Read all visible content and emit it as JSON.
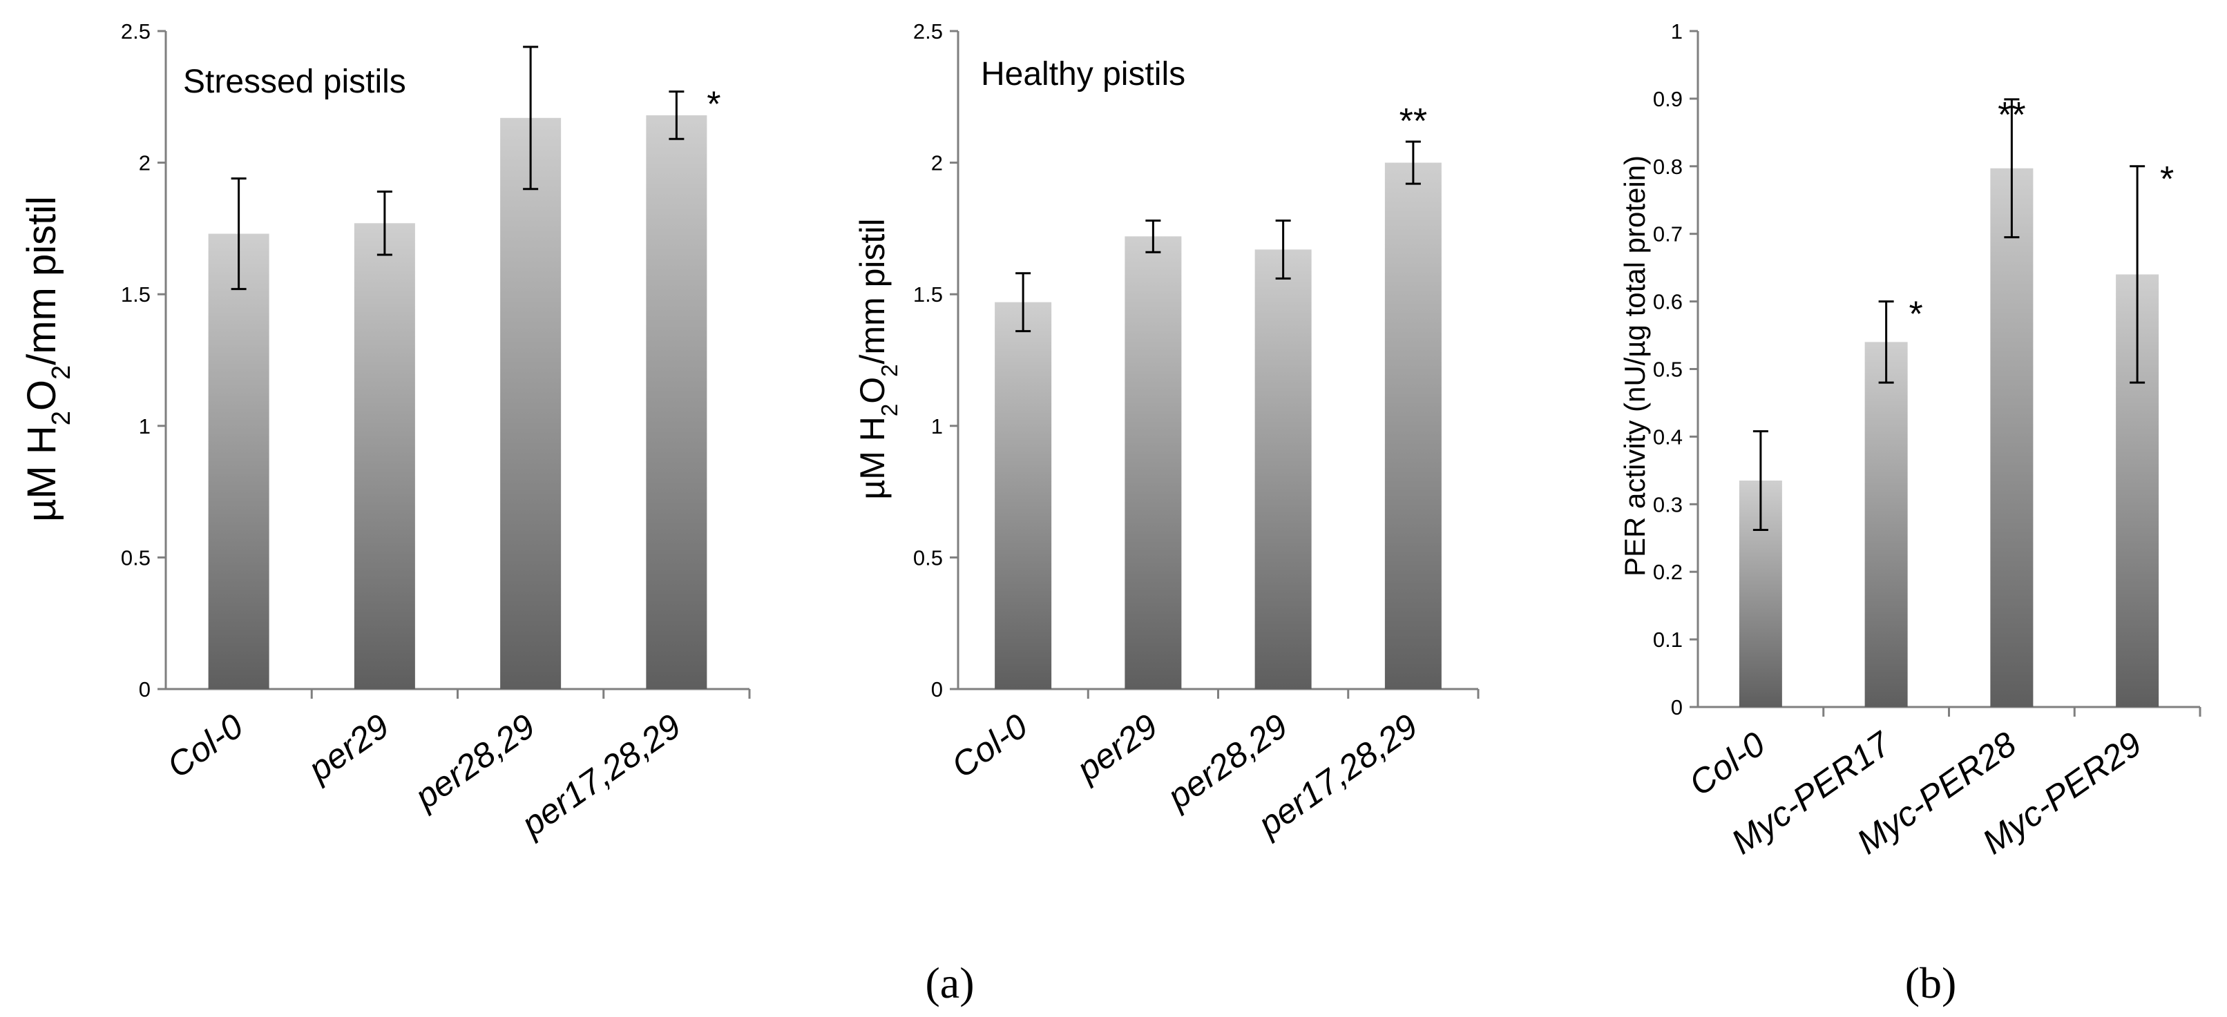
{
  "colors": {
    "bar_top": "#cfcfcf",
    "bar_bottom": "#5e5e5e",
    "axis": "#7f7f7f",
    "text": "#000000"
  },
  "panel_labels": [
    "(a)",
    "(b)"
  ],
  "chart_data": [
    {
      "type": "bar",
      "title": "Stressed pistils",
      "ylabel_parts": {
        "prefix": "µM H",
        "sub1": "2",
        "mid": "O",
        "sub2": "2",
        "suffix": "/mm pistil"
      },
      "categories": [
        "Col-0",
        "per29",
        "per28,29",
        "per17,28,29"
      ],
      "values": [
        1.73,
        1.77,
        2.17,
        2.18
      ],
      "errors": [
        0.21,
        0.12,
        0.27,
        0.09
      ],
      "significance": [
        "",
        "",
        "",
        "*"
      ],
      "ylim": [
        0,
        2.5
      ],
      "yticks": [
        0,
        0.5,
        1,
        1.5,
        2,
        2.5
      ],
      "ytick_labels": [
        "0",
        "0.5",
        "1",
        "1.5",
        "2",
        "2.5"
      ]
    },
    {
      "type": "bar",
      "title": "Healthy pistils",
      "ylabel_parts": {
        "prefix": "µM H",
        "sub1": "2",
        "mid": "O",
        "sub2": "2",
        "suffix": "/mm pistil"
      },
      "categories": [
        "Col-0",
        "per29",
        "per28,29",
        "per17,28,29"
      ],
      "values": [
        1.47,
        1.72,
        1.67,
        2.0
      ],
      "errors": [
        0.11,
        0.06,
        0.11,
        0.08
      ],
      "significance": [
        "",
        "",
        "",
        "**"
      ],
      "ylim": [
        0,
        2.5
      ],
      "yticks": [
        0,
        0.5,
        1,
        1.5,
        2,
        2.5
      ],
      "ytick_labels": [
        "0",
        "0.5",
        "1",
        "1.5",
        "2",
        "2.5"
      ]
    },
    {
      "type": "bar",
      "title": "",
      "ylabel": "PER activity (nU/µg total protein)",
      "categories": [
        "Col-0",
        "Myc-PER17",
        "Myc-PER28",
        "Myc-PER29"
      ],
      "values": [
        0.335,
        0.54,
        0.797,
        0.64
      ],
      "errors": [
        0.073,
        0.06,
        0.102,
        0.16
      ],
      "significance": [
        "",
        "*",
        "**",
        "*"
      ],
      "ylim": [
        0,
        1
      ],
      "yticks": [
        0,
        0.1,
        0.2,
        0.3,
        0.4,
        0.5,
        0.6,
        0.7,
        0.8,
        0.9,
        1
      ],
      "ytick_labels": [
        "0",
        "0.1",
        "0.2",
        "0.3",
        "0.4",
        "0.5",
        "0.6",
        "0.7",
        "0.8",
        "0.9",
        "1"
      ]
    }
  ]
}
